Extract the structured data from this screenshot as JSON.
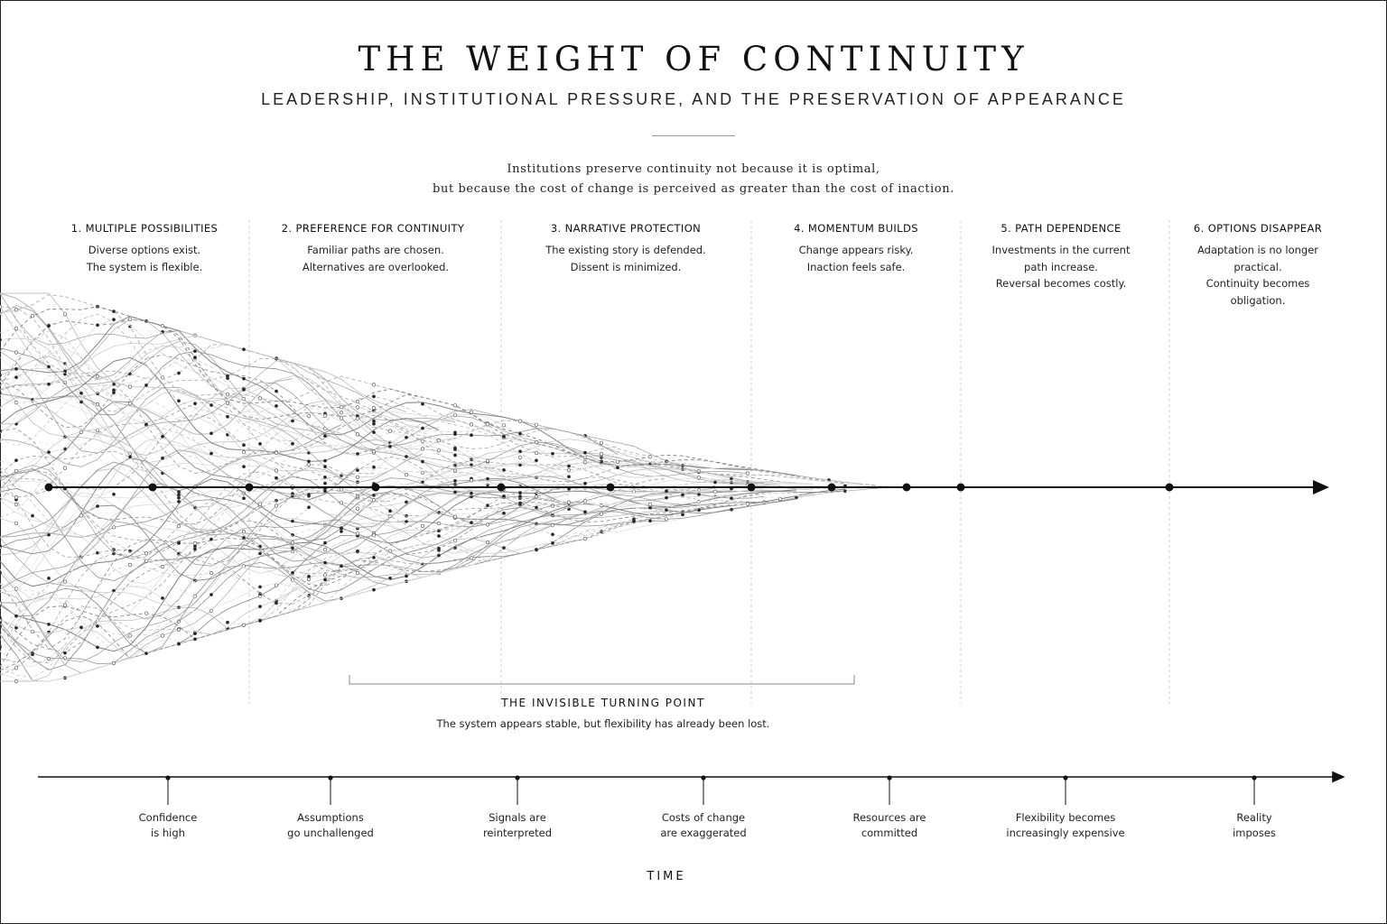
{
  "title": "THE WEIGHT OF CONTINUITY",
  "subtitle": "LEADERSHIP, INSTITUTIONAL PRESSURE, AND THE PRESERVATION OF APPEARANCE",
  "quote": [
    "Institutions preserve continuity not because it is optimal,",
    "but because the cost of change is perceived as greater than the cost of inaction."
  ],
  "stages": [
    {
      "title": "1. MULTIPLE POSSIBILITIES",
      "lines": [
        "Diverse options exist.",
        "The system is flexible."
      ]
    },
    {
      "title": "2. PREFERENCE FOR CONTINUITY",
      "lines": [
        "Familiar paths are chosen.",
        "Alternatives are overlooked."
      ]
    },
    {
      "title": "3. NARRATIVE PROTECTION",
      "lines": [
        "The existing story is defended.",
        "Dissent is minimized."
      ]
    },
    {
      "title": "4. MOMENTUM BUILDS",
      "lines": [
        "Change appears risky.",
        "Inaction feels safe."
      ]
    },
    {
      "title": "5. PATH DEPENDENCE",
      "lines": [
        "Investments in the current",
        "path increase.",
        "Reversal becomes costly."
      ]
    },
    {
      "title": "6. OPTIONS DISAPPEAR",
      "lines": [
        "Adaptation is no longer",
        "practical.",
        "Continuity becomes",
        "obligation."
      ]
    }
  ],
  "turning_point": {
    "title": "THE INVISIBLE TURNING POINT",
    "description": "The system appears stable, but flexibility has already been lost."
  },
  "timeline": {
    "label": "TIME",
    "milestones": [
      {
        "lines": [
          "Confidence",
          "is high"
        ]
      },
      {
        "lines": [
          "Assumptions",
          "go unchallenged"
        ]
      },
      {
        "lines": [
          "Signals are",
          "reinterpreted"
        ]
      },
      {
        "lines": [
          "Costs of change",
          "are exaggerated"
        ]
      },
      {
        "lines": [
          "Resources are",
          "committed"
        ]
      },
      {
        "lines": [
          "Flexibility becomes",
          "increasingly expensive"
        ]
      },
      {
        "lines": [
          "Reality",
          "imposes"
        ]
      }
    ]
  },
  "colors": {
    "ink": "#111111",
    "faint": "#9a9a9a",
    "divider": "#cfcfcf"
  }
}
